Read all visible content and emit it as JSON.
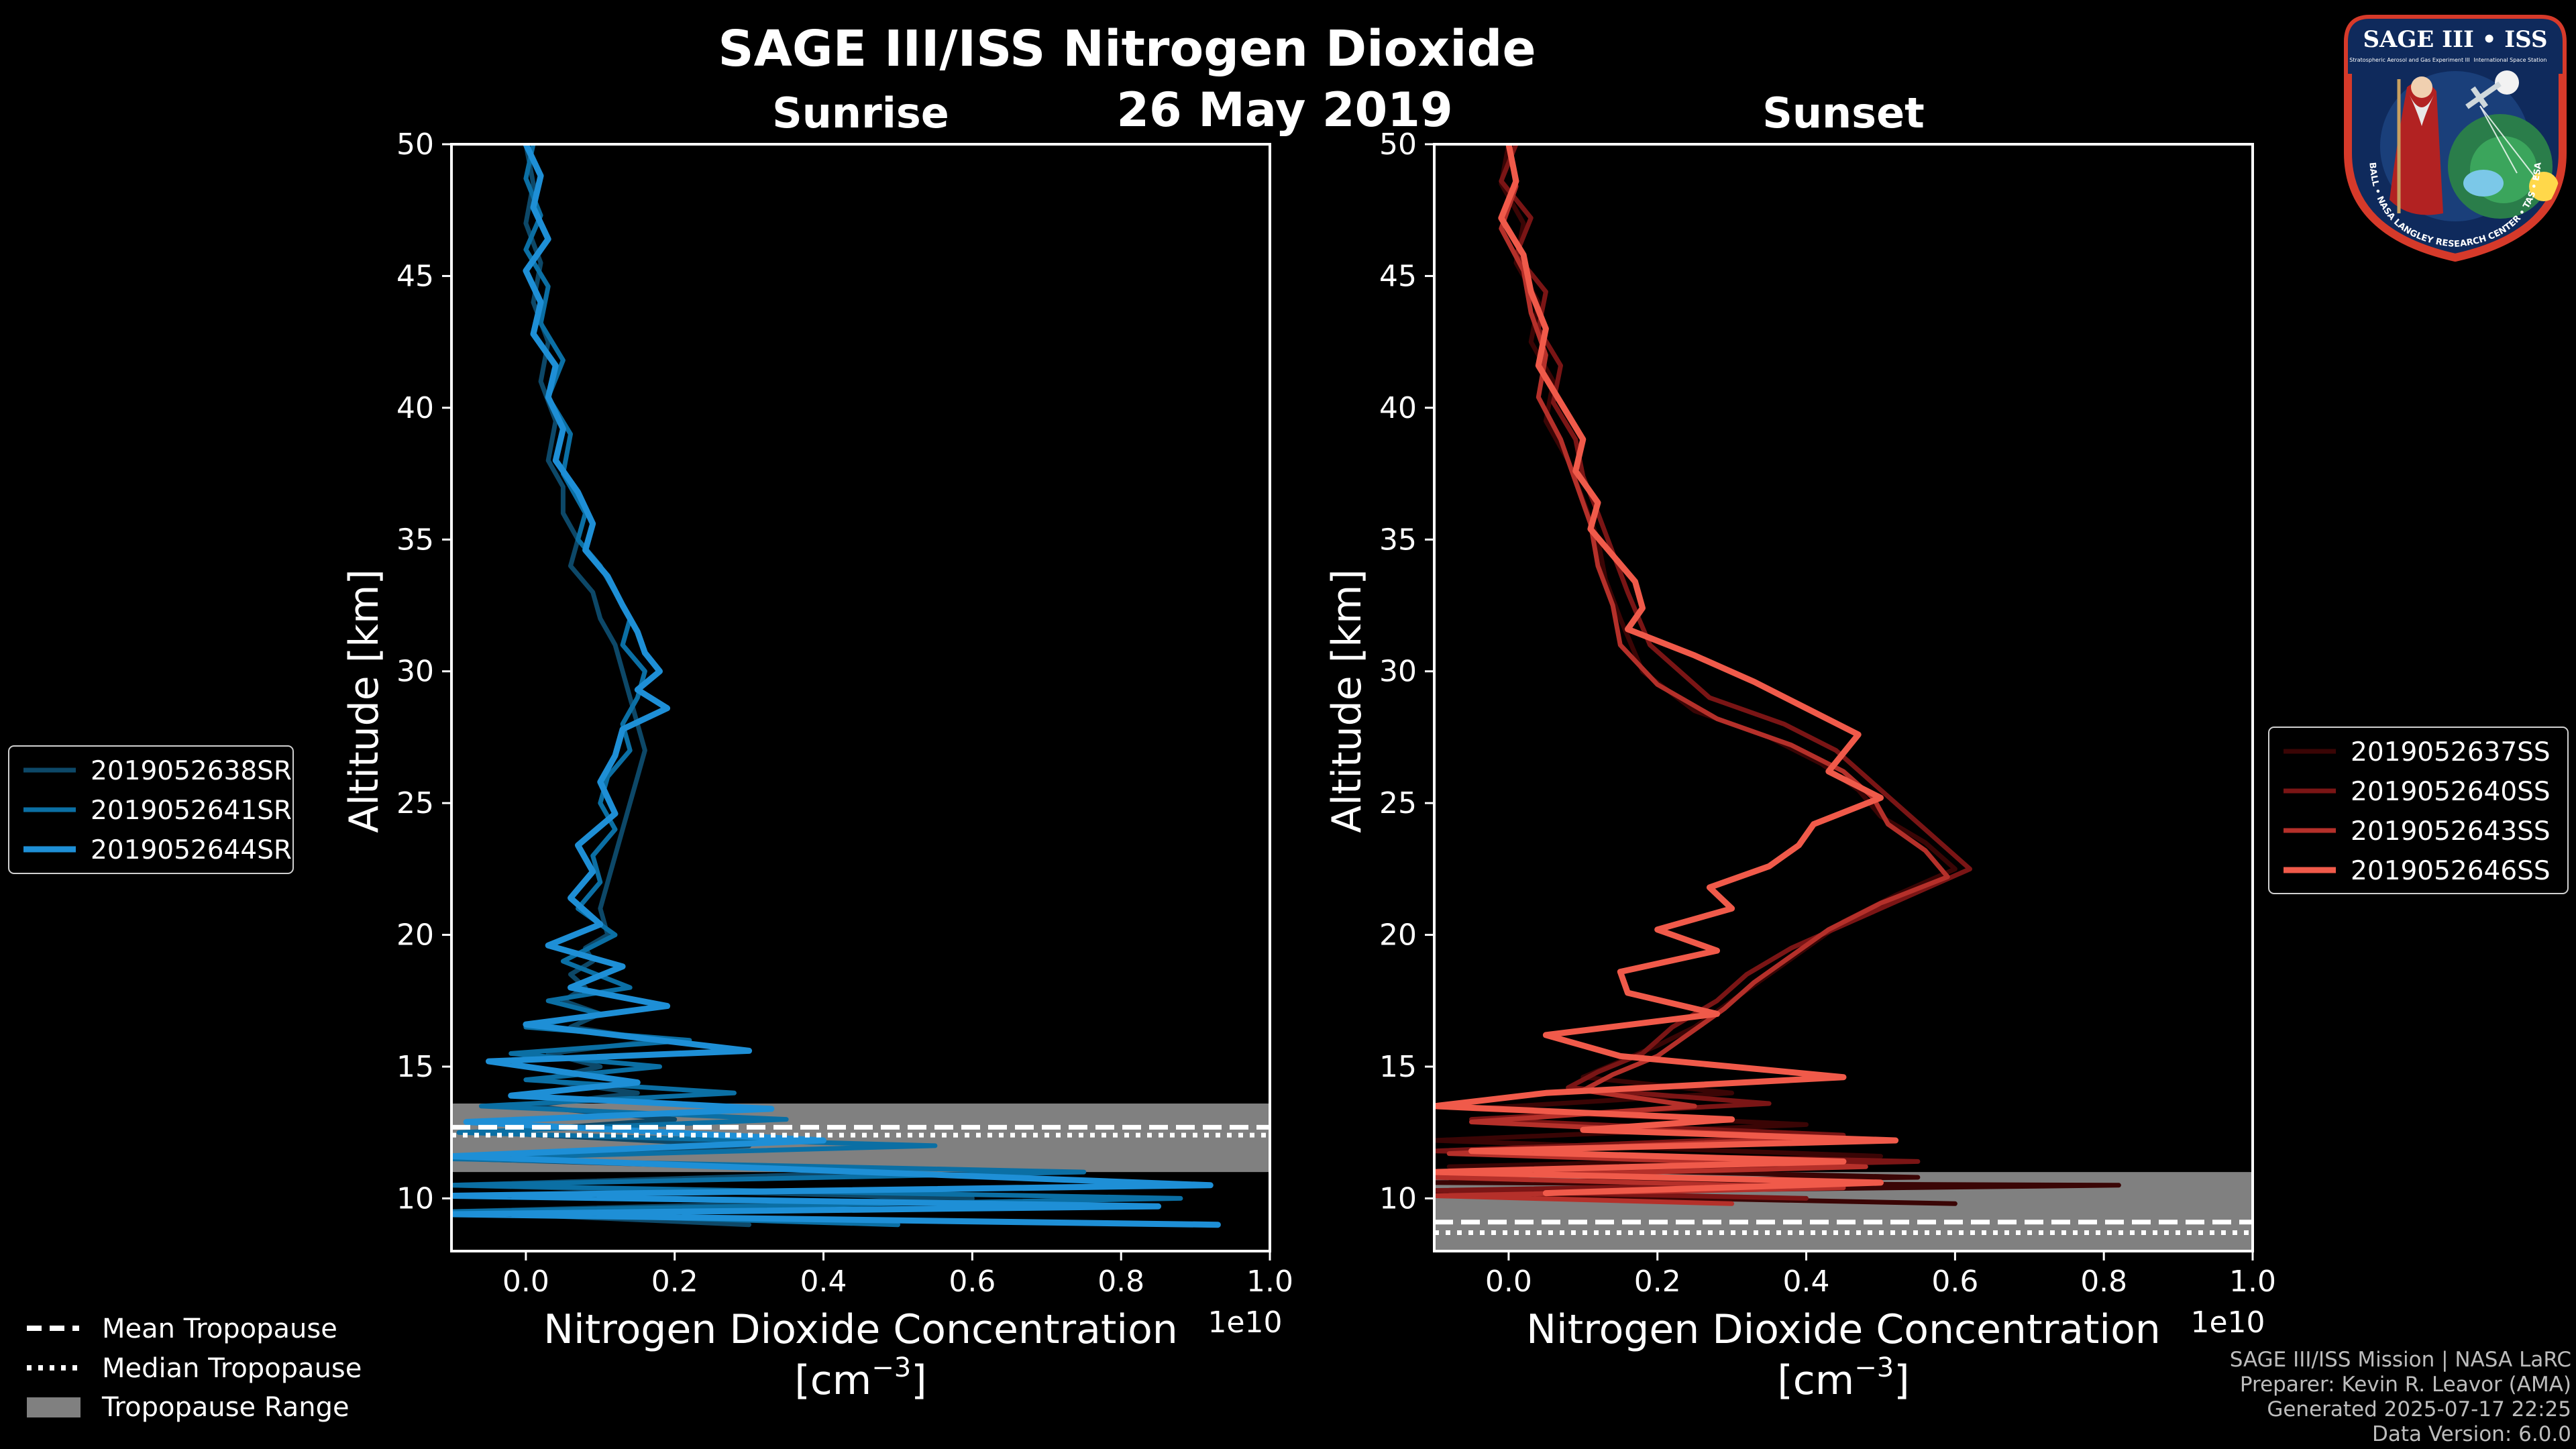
{
  "figure": {
    "title": "SAGE III/ISS Nitrogen Dioxide",
    "date": "26 May 2019",
    "credits": [
      "SAGE III/ISS Mission | NASA LaRC",
      "Preparer: Kevin R. Leavor (AMA)",
      "Generated 2025-07-17 22:25",
      "Data Version: 6.0.0"
    ]
  },
  "logo": {
    "title": "SAGE III • ISS",
    "subtitle": "Stratospheric Aerosol and Gas Experiment III",
    "station_text": "International Space Station",
    "ring_text": "BALL • NASA LANGLEY RESEARCH CENTER • TAS • ESA"
  },
  "bottom_legend": [
    {
      "label": "Mean Tropopause",
      "style": "dashed"
    },
    {
      "label": "Median Tropopause",
      "style": "dotted"
    },
    {
      "label": "Tropopause Range",
      "style": "patch"
    }
  ],
  "chart_data": [
    {
      "type": "line",
      "title": "Sunrise",
      "xlabel_line1": "Nitrogen Dioxide Concentration",
      "xlabel_line2": "[cm",
      "xlabel_sup": "−3",
      "xlabel_end": "]",
      "ylabel": "Altitude [km]",
      "x_offset_label": "1e10",
      "xlim": [
        -0.1,
        1.0
      ],
      "ylim": [
        8,
        50
      ],
      "xticks": [
        0.0,
        0.2,
        0.4,
        0.6,
        0.8,
        1.0
      ],
      "xtick_labels": [
        "0.0",
        "0.2",
        "0.4",
        "0.6",
        "0.8",
        "1.0"
      ],
      "yticks": [
        10,
        15,
        20,
        25,
        30,
        35,
        40,
        45,
        50
      ],
      "ytick_labels": [
        "10",
        "15",
        "20",
        "25",
        "30",
        "35",
        "40",
        "45",
        "50"
      ],
      "legend_position": "outside-left",
      "tropopause": {
        "range": [
          11.0,
          13.6
        ],
        "mean": 12.7,
        "median": 12.4,
        "color": "#808080"
      },
      "series": [
        {
          "name": "2019052638SR",
          "color": "#0d4868",
          "width": 7,
          "x": [
            0.0,
            0.01,
            0.0,
            0.02,
            0.01,
            0.03,
            0.02,
            0.04,
            0.03,
            0.05,
            0.05,
            0.07,
            0.06,
            0.09,
            0.1,
            0.12,
            0.13,
            0.14,
            0.15,
            0.16,
            0.15,
            0.14,
            0.13,
            0.12,
            0.11,
            0.1,
            0.11,
            0.08,
            0.09,
            0.06,
            0.08,
            0.05,
            0.1,
            0.06,
            0.18,
            0.03,
            0.1,
            0.02,
            0.15,
            0.0,
            0.2,
            -0.05,
            0.3,
            -0.08,
            0.5,
            -0.1,
            0.6,
            -0.1,
            0.3
          ],
          "y": [
            50,
            48.5,
            47,
            45.5,
            44,
            42.5,
            41,
            39.5,
            38,
            37,
            36,
            35,
            34,
            33,
            32,
            31,
            30,
            29,
            28,
            27,
            26,
            25,
            24,
            23,
            22,
            21,
            20,
            19.5,
            19,
            18.5,
            18,
            17.5,
            17,
            16.5,
            16,
            15.5,
            15,
            14.5,
            14,
            13.5,
            13,
            12.5,
            12,
            11.5,
            11,
            10.5,
            10,
            9.5,
            9
          ]
        },
        {
          "name": "2019052641SR",
          "color": "#0b6fa4",
          "width": 7,
          "x": [
            0.01,
            0.0,
            0.02,
            0.0,
            0.03,
            0.02,
            0.05,
            0.03,
            0.06,
            0.05,
            0.08,
            0.07,
            0.1,
            0.12,
            0.14,
            0.13,
            0.16,
            0.15,
            0.13,
            0.14,
            0.11,
            0.1,
            0.12,
            0.09,
            0.1,
            0.07,
            0.12,
            0.05,
            0.14,
            0.03,
            0.1,
            0.0,
            0.22,
            -0.02,
            0.18,
            0.0,
            0.28,
            -0.06,
            0.35,
            -0.09,
            0.55,
            -0.1,
            0.75,
            -0.1,
            0.88,
            -0.1,
            0.5
          ],
          "y": [
            50,
            48.7,
            47.3,
            46,
            44.6,
            43.2,
            41.8,
            40.4,
            39,
            37.5,
            36,
            35,
            34,
            33,
            32,
            31,
            30,
            29,
            28,
            27,
            26,
            25,
            24,
            23,
            22,
            21,
            20,
            19,
            18,
            17.5,
            17,
            16.5,
            16,
            15.5,
            15,
            14.5,
            14,
            13.5,
            13,
            12.5,
            12,
            11.5,
            11,
            10.5,
            10,
            9.5,
            9
          ]
        },
        {
          "name": "2019052644SR",
          "color": "#1e8fd6",
          "width": 9,
          "x": [
            0.0,
            0.02,
            0.01,
            0.03,
            0.0,
            0.02,
            0.01,
            0.04,
            0.03,
            0.05,
            0.04,
            0.07,
            0.09,
            0.08,
            0.11,
            0.13,
            0.15,
            0.16,
            0.18,
            0.15,
            0.19,
            0.13,
            0.12,
            0.1,
            0.12,
            0.07,
            0.09,
            0.06,
            0.1,
            0.03,
            0.13,
            0.06,
            0.19,
            0.0,
            0.3,
            -0.05,
            0.15,
            -0.02,
            0.33,
            -0.08,
            0.4,
            -0.1,
            0.92,
            -0.1,
            0.85,
            -0.1,
            0.93
          ],
          "y": [
            50,
            48.8,
            47.6,
            46.4,
            45.2,
            44,
            42.8,
            41.6,
            40.4,
            39.2,
            38,
            36.8,
            35.6,
            34.6,
            33.6,
            32.5,
            31.5,
            30.7,
            30,
            29.3,
            28.6,
            27.8,
            26.8,
            25.8,
            24.6,
            23.4,
            22.4,
            21.4,
            20.4,
            19.6,
            18.8,
            18,
            17.3,
            16.6,
            15.6,
            15.2,
            14.4,
            13.9,
            13.4,
            12.9,
            12.2,
            11.6,
            10.5,
            10.1,
            9.7,
            9.4,
            9.0
          ]
        }
      ]
    },
    {
      "type": "line",
      "title": "Sunset",
      "xlabel_line1": "Nitrogen Dioxide Concentration",
      "xlabel_line2": "[cm",
      "xlabel_sup": "−3",
      "xlabel_end": "]",
      "ylabel": "Altitude [km]",
      "x_offset_label": "1e10",
      "xlim": [
        -0.1,
        1.0
      ],
      "ylim": [
        8,
        50
      ],
      "xticks": [
        0.0,
        0.2,
        0.4,
        0.6,
        0.8,
        1.0
      ],
      "xtick_labels": [
        "0.0",
        "0.2",
        "0.4",
        "0.6",
        "0.8",
        "1.0"
      ],
      "yticks": [
        10,
        15,
        20,
        25,
        30,
        35,
        40,
        45,
        50
      ],
      "ytick_labels": [
        "10",
        "15",
        "20",
        "25",
        "30",
        "35",
        "40",
        "45",
        "50"
      ],
      "legend_position": "outside-right",
      "tropopause": {
        "range": [
          8.0,
          11.0
        ],
        "mean": 9.1,
        "median": 8.7,
        "color": "#808080"
      },
      "series": [
        {
          "name": "2019052637SS",
          "color": "#3a0505",
          "width": 7,
          "x": [
            0.0,
            -0.01,
            0.02,
            0.01,
            0.04,
            0.03,
            0.06,
            0.05,
            0.08,
            0.1,
            0.12,
            0.13,
            0.15,
            0.18,
            0.25,
            0.35,
            0.42,
            0.47,
            0.5,
            0.56,
            0.6,
            0.52,
            0.45,
            0.4,
            0.35,
            0.3,
            0.25,
            0.2,
            0.15,
            0.1,
            0.3,
            -0.05,
            0.4,
            -0.1,
            0.5,
            -0.08,
            0.55,
            -0.1,
            0.82,
            -0.1,
            0.6
          ],
          "y": [
            50,
            48.5,
            47,
            45.5,
            44,
            42.5,
            41,
            39.5,
            38,
            36.5,
            35,
            33.5,
            32,
            30,
            28.5,
            27.5,
            26.5,
            25.5,
            24.5,
            23.5,
            22.5,
            21.5,
            20.5,
            19.5,
            18.5,
            17.5,
            16.5,
            15.8,
            15.2,
            14.6,
            14.0,
            13.4,
            12.8,
            12.2,
            11.6,
            11.2,
            10.8,
            10.6,
            10.5,
            10.2,
            9.8
          ]
        },
        {
          "name": "2019052640SS",
          "color": "#7a1515",
          "width": 7,
          "x": [
            0.01,
            -0.01,
            0.03,
            0.01,
            0.05,
            0.04,
            0.07,
            0.06,
            0.09,
            0.1,
            0.12,
            0.14,
            0.16,
            0.19,
            0.27,
            0.37,
            0.44,
            0.48,
            0.52,
            0.58,
            0.62,
            0.54,
            0.46,
            0.38,
            0.32,
            0.28,
            0.22,
            0.18,
            0.12,
            0.08,
            0.35,
            -0.05,
            0.45,
            -0.1,
            0.55,
            -0.05,
            0.5,
            -0.1,
            0.4
          ],
          "y": [
            50,
            48.6,
            47.2,
            45.8,
            44.4,
            43,
            41.6,
            40.2,
            38.8,
            37.4,
            36,
            34.5,
            33,
            31,
            29,
            28,
            27,
            26,
            25,
            23.5,
            22.5,
            21.5,
            20.5,
            19.5,
            18.5,
            17.5,
            16.5,
            15.5,
            14.8,
            14.2,
            13.6,
            13.0,
            12.4,
            11.8,
            11.4,
            11.0,
            10.6,
            10.3,
            10.0
          ]
        },
        {
          "name": "2019052643SS",
          "color": "#b5302a",
          "width": 7,
          "x": [
            0.0,
            0.01,
            -0.01,
            0.02,
            0.03,
            0.05,
            0.04,
            0.07,
            0.09,
            0.11,
            0.12,
            0.14,
            0.15,
            0.2,
            0.28,
            0.38,
            0.45,
            0.49,
            0.51,
            0.56,
            0.59,
            0.5,
            0.43,
            0.38,
            0.33,
            0.29,
            0.24,
            0.2,
            0.14,
            0.1,
            0.25,
            -0.05,
            0.42,
            -0.08,
            0.48,
            -0.1,
            0.45,
            -0.1,
            0.3
          ],
          "y": [
            50,
            48.4,
            46.8,
            45.2,
            43.6,
            42,
            40.4,
            38.8,
            37.2,
            35.6,
            34,
            32.5,
            31,
            29.5,
            28.2,
            27.2,
            26.2,
            25.2,
            24.2,
            23.2,
            22.2,
            21.2,
            20.2,
            19.2,
            18.2,
            17.2,
            16.2,
            15.4,
            14.7,
            14.1,
            13.5,
            12.9,
            12.3,
            11.7,
            11.2,
            10.8,
            10.4,
            10.1,
            9.8
          ]
        },
        {
          "name": "2019052646SS",
          "color": "#f05a4a",
          "width": 9,
          "x": [
            0.0,
            0.01,
            -0.01,
            0.02,
            0.03,
            0.05,
            0.04,
            0.07,
            0.1,
            0.09,
            0.12,
            0.11,
            0.14,
            0.17,
            0.18,
            0.16,
            0.25,
            0.33,
            0.4,
            0.47,
            0.43,
            0.5,
            0.41,
            0.39,
            0.35,
            0.27,
            0.3,
            0.2,
            0.28,
            0.15,
            0.16,
            0.28,
            0.05,
            0.15,
            0.45,
            0.05,
            -0.1,
            0.3,
            0.1,
            0.52,
            -0.05,
            0.45,
            -0.1,
            0.5,
            0.05
          ],
          "y": [
            50,
            48.6,
            47.2,
            45.8,
            44.4,
            43,
            41.6,
            40.2,
            38.8,
            37.6,
            36.4,
            35.4,
            34.4,
            33.4,
            32.4,
            31.6,
            30.6,
            29.6,
            28.6,
            27.6,
            26.2,
            25.2,
            24.2,
            23.4,
            22.6,
            21.8,
            21.0,
            20.2,
            19.4,
            18.6,
            17.8,
            17.0,
            16.2,
            15.4,
            14.6,
            14.0,
            13.5,
            13.0,
            12.6,
            12.2,
            11.8,
            11.4,
            11.0,
            10.6,
            10.2
          ]
        }
      ]
    }
  ]
}
